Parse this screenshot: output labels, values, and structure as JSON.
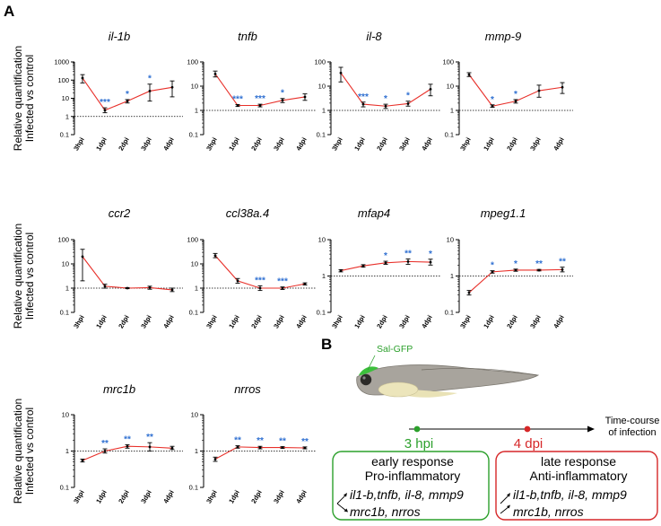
{
  "panel_a": {
    "letter": "A"
  },
  "panel_b": {
    "letter": "B",
    "fish_label": "Sal-GFP",
    "timeline_label_line1": "Time-course",
    "timeline_label_line2": "of infection",
    "early": {
      "time": "3 hpi",
      "line1": "early response",
      "line2": "Pro-inflammatory",
      "genes_up": "il1-b,tnfb, il-8, mmp9",
      "genes_down": "mrc1b, nrros",
      "color": "#2ca02c"
    },
    "late": {
      "time": "4 dpi",
      "line1": "late response",
      "line2": "Anti-inflammatory",
      "genes_up": "il1-b,tnfb, il-8, mmp9",
      "genes_down": "mrc1b, nrros",
      "color": "#d62728"
    }
  },
  "colors": {
    "line": "#e8302a",
    "stars": "#2e6fd1",
    "error_bars": "#000000",
    "reference": "#000000"
  },
  "chart_data": [
    {
      "type": "line",
      "title": "il-1b",
      "ylabel_line1": "Relative quantification",
      "ylabel_line2": "Infected vs control",
      "categories": [
        "3hpi",
        "1dpi",
        "2dpi",
        "3dpi",
        "4dpi"
      ],
      "values": [
        130,
        2.2,
        7,
        25,
        40
      ],
      "errors": [
        [
          70,
          200
        ],
        [
          1.6,
          3
        ],
        [
          5.5,
          8.5
        ],
        [
          7,
          60
        ],
        [
          12,
          90
        ]
      ],
      "significance": [
        "",
        "***",
        "*",
        "*",
        ""
      ],
      "y_scale": "log",
      "ylim": [
        0.1,
        1000
      ],
      "yticks": [
        "0.1",
        "1",
        "10",
        "100",
        "1000"
      ],
      "reference_line": 1
    },
    {
      "type": "line",
      "title": "tnfb",
      "ylabel_line1": "",
      "ylabel_line2": "",
      "categories": [
        "3hpi",
        "1dpi",
        "2dpi",
        "3dpi",
        "4dpi"
      ],
      "values": [
        32,
        1.6,
        1.6,
        2.6,
        3.6
      ],
      "errors": [
        [
          24,
          42
        ],
        [
          1.45,
          1.75
        ],
        [
          1.4,
          1.8
        ],
        [
          2.1,
          3.1
        ],
        [
          2.6,
          4.8
        ]
      ],
      "significance": [
        "",
        "***",
        "***",
        "*",
        ""
      ],
      "y_scale": "log",
      "ylim": [
        0.1,
        100
      ],
      "yticks": [
        "0.1",
        "1",
        "10",
        "100"
      ],
      "reference_line": 1
    },
    {
      "type": "line",
      "title": "il-8",
      "ylabel_line1": "",
      "ylabel_line2": "",
      "categories": [
        "3hpi",
        "1dpi",
        "2dpi",
        "3dpi",
        "4dpi"
      ],
      "values": [
        35,
        1.8,
        1.5,
        1.9,
        7.5
      ],
      "errors": [
        [
          15,
          60
        ],
        [
          1.4,
          2.2
        ],
        [
          1.2,
          1.8
        ],
        [
          1.5,
          2.4
        ],
        [
          4,
          12
        ]
      ],
      "significance": [
        "",
        "***",
        "*",
        "*",
        ""
      ],
      "y_scale": "log",
      "ylim": [
        0.1,
        100
      ],
      "yticks": [
        "0.1",
        "1",
        "10",
        "100"
      ],
      "reference_line": 1
    },
    {
      "type": "line",
      "title": "mmp-9",
      "ylabel_line1": "",
      "ylabel_line2": "",
      "categories": [
        "3hpi",
        "1dpi",
        "2dpi",
        "3dpi",
        "4dpi"
      ],
      "values": [
        30,
        1.5,
        2.4,
        6.5,
        9
      ],
      "errors": [
        [
          25,
          36
        ],
        [
          1.35,
          1.7
        ],
        [
          2,
          2.8
        ],
        [
          3.5,
          11
        ],
        [
          5,
          14
        ]
      ],
      "significance": [
        "",
        "*",
        "*",
        "",
        ""
      ],
      "y_scale": "log",
      "ylim": [
        0.1,
        100
      ],
      "yticks": [
        "0.1",
        "1",
        "10",
        "100"
      ],
      "reference_line": 1
    },
    {
      "type": "line",
      "title": "ccr2",
      "ylabel_line1": "Relative quantification",
      "ylabel_line2": "Infected vs control",
      "categories": [
        "3hpi",
        "1dpi",
        "2dpi",
        "3dpi",
        "4dpi"
      ],
      "values": [
        20,
        1.2,
        1.0,
        1.05,
        0.85
      ],
      "errors": [
        [
          2,
          40
        ],
        [
          1.0,
          1.45
        ],
        [
          0.95,
          1.05
        ],
        [
          0.9,
          1.2
        ],
        [
          0.72,
          1.0
        ]
      ],
      "significance": [
        "",
        "",
        "",
        "",
        ""
      ],
      "y_scale": "log",
      "ylim": [
        0.1,
        100
      ],
      "yticks": [
        "0.1",
        "1",
        "10",
        "100"
      ],
      "reference_line": 1
    },
    {
      "type": "line",
      "title": "ccl38a.4",
      "ylabel_line1": "",
      "ylabel_line2": "",
      "categories": [
        "3hpi",
        "1dpi",
        "2dpi",
        "3dpi",
        "4dpi"
      ],
      "values": [
        22,
        2.0,
        1.0,
        1.0,
        1.5
      ],
      "errors": [
        [
          18,
          27
        ],
        [
          1.6,
          2.5
        ],
        [
          0.8,
          1.25
        ],
        [
          0.88,
          1.12
        ],
        [
          1.35,
          1.65
        ]
      ],
      "significance": [
        "",
        "",
        "***",
        "***",
        ""
      ],
      "y_scale": "log",
      "ylim": [
        0.1,
        100
      ],
      "yticks": [
        "0.1",
        "1",
        "10",
        "100"
      ],
      "reference_line": 1
    },
    {
      "type": "line",
      "title": "mfap4",
      "ylabel_line1": "",
      "ylabel_line2": "",
      "categories": [
        "3hpi",
        "1dpi",
        "2dpi",
        "3dpi",
        "4dpi"
      ],
      "values": [
        1.4,
        1.9,
        2.3,
        2.5,
        2.4
      ],
      "errors": [
        [
          1.3,
          1.5
        ],
        [
          1.75,
          2.05
        ],
        [
          2.1,
          2.55
        ],
        [
          2.1,
          2.95
        ],
        [
          2.0,
          2.9
        ]
      ],
      "significance": [
        "",
        "",
        "*",
        "**",
        "*"
      ],
      "y_scale": "log",
      "ylim": [
        0.1,
        10
      ],
      "yticks": [
        "0.1",
        "1",
        "10"
      ],
      "reference_line": 1
    },
    {
      "type": "line",
      "title": "mpeg1.1",
      "ylabel_line1": "",
      "ylabel_line2": "",
      "categories": [
        "3hpi",
        "1dpi",
        "2dpi",
        "3dpi",
        "4dpi"
      ],
      "values": [
        0.35,
        1.3,
        1.45,
        1.45,
        1.5
      ],
      "errors": [
        [
          0.3,
          0.4
        ],
        [
          1.2,
          1.4
        ],
        [
          1.35,
          1.55
        ],
        [
          1.38,
          1.52
        ],
        [
          1.3,
          1.75
        ]
      ],
      "significance": [
        "",
        "*",
        "*",
        "**",
        "**"
      ],
      "y_scale": "log",
      "ylim": [
        0.1,
        10
      ],
      "yticks": [
        "0.1",
        "1",
        "10"
      ],
      "reference_line": 1
    },
    {
      "type": "line",
      "title": "mrc1b",
      "ylabel_line1": "Relative quantification",
      "ylabel_line2": "Infected vs control",
      "categories": [
        "3hpi",
        "1dpi",
        "2dpi",
        "3dpi",
        "4dpi"
      ],
      "values": [
        0.55,
        1.0,
        1.35,
        1.3,
        1.2
      ],
      "errors": [
        [
          0.5,
          0.6
        ],
        [
          0.88,
          1.15
        ],
        [
          1.2,
          1.5
        ],
        [
          1.0,
          1.7
        ],
        [
          1.1,
          1.35
        ]
      ],
      "significance": [
        "",
        "**",
        "**",
        "**",
        ""
      ],
      "y_scale": "log",
      "ylim": [
        0.1,
        10
      ],
      "yticks": [
        "0.1",
        "1",
        "10"
      ],
      "reference_line": 1
    },
    {
      "type": "line",
      "title": "nrros",
      "ylabel_line1": "",
      "ylabel_line2": "",
      "categories": [
        "3hpi",
        "1dpi",
        "2dpi",
        "3dpi",
        "4dpi"
      ],
      "values": [
        0.6,
        1.3,
        1.25,
        1.25,
        1.22
      ],
      "errors": [
        [
          0.52,
          0.68
        ],
        [
          1.2,
          1.4
        ],
        [
          1.15,
          1.35
        ],
        [
          1.18,
          1.32
        ],
        [
          1.15,
          1.3
        ]
      ],
      "significance": [
        "",
        "**",
        "**",
        "**",
        "**"
      ],
      "y_scale": "log",
      "ylim": [
        0.1,
        10
      ],
      "yticks": [
        "0.1",
        "1",
        "10"
      ],
      "reference_line": 1
    }
  ]
}
